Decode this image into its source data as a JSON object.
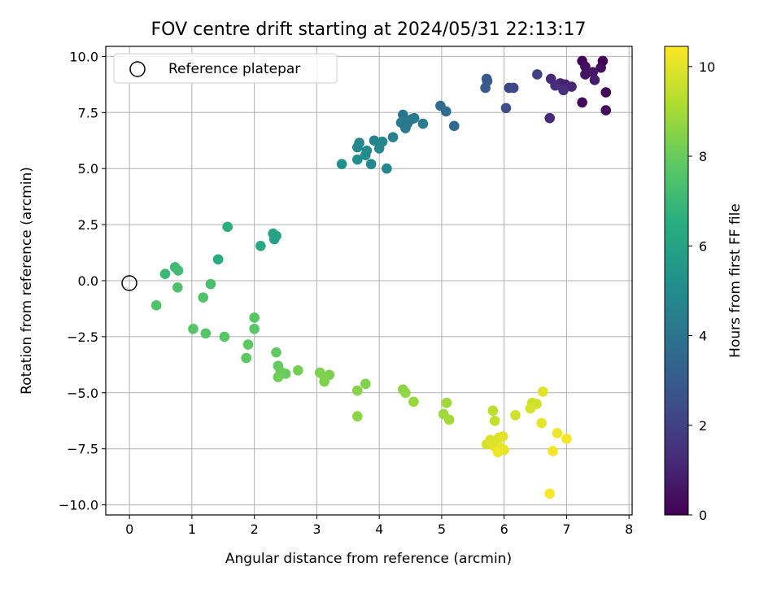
{
  "chart_data": {
    "type": "scatter",
    "title": "FOV centre drift starting at 2024/05/31 22:13:17",
    "xlabel": "Angular distance from reference (arcmin)",
    "ylabel": "Rotation from reference (arcmin)",
    "xlim": [
      -0.38,
      8.05
    ],
    "ylim": [
      -10.45,
      10.45
    ],
    "xticks": [
      "0",
      "1",
      "2",
      "3",
      "4",
      "5",
      "6",
      "7",
      "8"
    ],
    "xtick_values": [
      0,
      1,
      2,
      3,
      4,
      5,
      6,
      7,
      8
    ],
    "yticks": [
      "−10.0",
      "−7.5",
      "−5.0",
      "−2.5",
      "0.0",
      "2.5",
      "5.0",
      "7.5",
      "10.0"
    ],
    "ytick_values": [
      -10,
      -7.5,
      -5,
      -2.5,
      0,
      2.5,
      5,
      7.5,
      10
    ],
    "grid": true,
    "legend": {
      "placement": "upper-left",
      "entries": [
        {
          "label": "Reference platepar",
          "marker": "open-circle"
        }
      ]
    },
    "reference_point": {
      "x": 0,
      "y": 0
    },
    "colorbar": {
      "label": "Hours from first FF file",
      "colormap": "viridis",
      "range": [
        0,
        10.45
      ],
      "ticks": [
        "0",
        "2",
        "4",
        "6",
        "8",
        "10"
      ],
      "tick_values": [
        0,
        2,
        4,
        6,
        8,
        10
      ]
    },
    "points": [
      {
        "x": 7.25,
        "y": 9.8,
        "t": 0.2
      },
      {
        "x": 7.58,
        "y": 9.8,
        "t": 0.1
      },
      {
        "x": 7.3,
        "y": 9.55,
        "t": 0.4
      },
      {
        "x": 7.55,
        "y": 9.5,
        "t": 0.3
      },
      {
        "x": 7.42,
        "y": 9.3,
        "t": 0.6
      },
      {
        "x": 7.3,
        "y": 9.2,
        "t": 0.5
      },
      {
        "x": 7.45,
        "y": 8.95,
        "t": 0.8
      },
      {
        "x": 7.63,
        "y": 8.4,
        "t": 0.1
      },
      {
        "x": 7.25,
        "y": 7.95,
        "t": 0.2
      },
      {
        "x": 7.63,
        "y": 7.6,
        "t": 0.3
      },
      {
        "x": 6.75,
        "y": 9.0,
        "t": 1.2
      },
      {
        "x": 6.9,
        "y": 8.8,
        "t": 1.1
      },
      {
        "x": 6.98,
        "y": 8.75,
        "t": 1.0
      },
      {
        "x": 6.82,
        "y": 8.7,
        "t": 1.3
      },
      {
        "x": 7.08,
        "y": 8.65,
        "t": 1.1
      },
      {
        "x": 6.95,
        "y": 8.5,
        "t": 1.4
      },
      {
        "x": 6.73,
        "y": 7.25,
        "t": 1.2
      },
      {
        "x": 6.53,
        "y": 9.2,
        "t": 2.0
      },
      {
        "x": 6.08,
        "y": 8.6,
        "t": 2.2
      },
      {
        "x": 6.15,
        "y": 8.6,
        "t": 2.3
      },
      {
        "x": 6.03,
        "y": 7.7,
        "t": 2.5
      },
      {
        "x": 5.72,
        "y": 9.0,
        "t": 2.8
      },
      {
        "x": 5.73,
        "y": 8.9,
        "t": 2.9
      },
      {
        "x": 5.7,
        "y": 8.6,
        "t": 3.0
      },
      {
        "x": 4.98,
        "y": 7.8,
        "t": 3.6
      },
      {
        "x": 5.07,
        "y": 7.55,
        "t": 3.7
      },
      {
        "x": 5.2,
        "y": 6.9,
        "t": 3.5
      },
      {
        "x": 4.38,
        "y": 7.4,
        "t": 4.0
      },
      {
        "x": 4.52,
        "y": 7.2,
        "t": 4.1
      },
      {
        "x": 4.56,
        "y": 7.25,
        "t": 4.2
      },
      {
        "x": 4.35,
        "y": 7.05,
        "t": 4.3
      },
      {
        "x": 4.45,
        "y": 7.0,
        "t": 4.1
      },
      {
        "x": 4.7,
        "y": 7.0,
        "t": 4.4
      },
      {
        "x": 4.42,
        "y": 6.8,
        "t": 4.2
      },
      {
        "x": 4.22,
        "y": 6.4,
        "t": 4.5
      },
      {
        "x": 3.92,
        "y": 6.25,
        "t": 4.6
      },
      {
        "x": 4.05,
        "y": 6.2,
        "t": 4.7
      },
      {
        "x": 3.68,
        "y": 6.15,
        "t": 4.8
      },
      {
        "x": 3.65,
        "y": 5.95,
        "t": 4.9
      },
      {
        "x": 3.8,
        "y": 5.8,
        "t": 5.0
      },
      {
        "x": 4.0,
        "y": 5.9,
        "t": 4.8
      },
      {
        "x": 3.78,
        "y": 5.6,
        "t": 5.1
      },
      {
        "x": 3.65,
        "y": 5.4,
        "t": 5.0
      },
      {
        "x": 3.87,
        "y": 5.2,
        "t": 4.9
      },
      {
        "x": 4.12,
        "y": 5.0,
        "t": 4.7
      },
      {
        "x": 3.4,
        "y": 5.2,
        "t": 5.2
      },
      {
        "x": 2.3,
        "y": 2.1,
        "t": 6.0
      },
      {
        "x": 2.35,
        "y": 2.0,
        "t": 6.1
      },
      {
        "x": 2.32,
        "y": 1.85,
        "t": 6.0
      },
      {
        "x": 2.1,
        "y": 1.55,
        "t": 6.2
      },
      {
        "x": 1.57,
        "y": 2.4,
        "t": 6.6
      },
      {
        "x": 1.42,
        "y": 0.95,
        "t": 6.4
      },
      {
        "x": 0.73,
        "y": 0.6,
        "t": 7.1
      },
      {
        "x": 0.78,
        "y": 0.45,
        "t": 7.2
      },
      {
        "x": 0.57,
        "y": 0.3,
        "t": 7.0
      },
      {
        "x": 1.3,
        "y": -0.15,
        "t": 7.3
      },
      {
        "x": 0.77,
        "y": -0.3,
        "t": 7.4
      },
      {
        "x": 1.18,
        "y": -0.75,
        "t": 7.5
      },
      {
        "x": 0.43,
        "y": -1.1,
        "t": 7.5
      },
      {
        "x": 2.0,
        "y": -1.65,
        "t": 7.7
      },
      {
        "x": 1.02,
        "y": -2.15,
        "t": 7.6
      },
      {
        "x": 2.0,
        "y": -2.15,
        "t": 7.7
      },
      {
        "x": 1.22,
        "y": -2.35,
        "t": 7.6
      },
      {
        "x": 1.52,
        "y": -2.5,
        "t": 7.7
      },
      {
        "x": 1.9,
        "y": -2.85,
        "t": 7.8
      },
      {
        "x": 2.35,
        "y": -3.2,
        "t": 7.9
      },
      {
        "x": 1.87,
        "y": -3.45,
        "t": 7.8
      },
      {
        "x": 2.38,
        "y": -3.8,
        "t": 7.9
      },
      {
        "x": 2.42,
        "y": -4.05,
        "t": 8.0
      },
      {
        "x": 2.5,
        "y": -4.15,
        "t": 8.0
      },
      {
        "x": 2.38,
        "y": -4.3,
        "t": 8.1
      },
      {
        "x": 2.7,
        "y": -4.0,
        "t": 8.2
      },
      {
        "x": 3.05,
        "y": -4.1,
        "t": 8.3
      },
      {
        "x": 3.2,
        "y": -4.2,
        "t": 8.3
      },
      {
        "x": 3.12,
        "y": -4.3,
        "t": 8.4
      },
      {
        "x": 3.12,
        "y": -4.5,
        "t": 8.4
      },
      {
        "x": 3.78,
        "y": -4.6,
        "t": 8.4
      },
      {
        "x": 3.65,
        "y": -4.9,
        "t": 8.5
      },
      {
        "x": 3.65,
        "y": -6.05,
        "t": 8.6
      },
      {
        "x": 4.38,
        "y": -4.85,
        "t": 8.6
      },
      {
        "x": 4.42,
        "y": -5.0,
        "t": 8.7
      },
      {
        "x": 4.55,
        "y": -5.4,
        "t": 8.8
      },
      {
        "x": 5.08,
        "y": -5.45,
        "t": 8.9
      },
      {
        "x": 5.03,
        "y": -5.95,
        "t": 8.9
      },
      {
        "x": 5.12,
        "y": -6.2,
        "t": 9.0
      },
      {
        "x": 5.82,
        "y": -5.8,
        "t": 9.4
      },
      {
        "x": 5.85,
        "y": -6.25,
        "t": 9.5
      },
      {
        "x": 6.18,
        "y": -6.0,
        "t": 9.7
      },
      {
        "x": 5.72,
        "y": -7.3,
        "t": 9.8
      },
      {
        "x": 5.78,
        "y": -7.1,
        "t": 9.9
      },
      {
        "x": 5.92,
        "y": -7.0,
        "t": 9.9
      },
      {
        "x": 5.98,
        "y": -6.95,
        "t": 10.0
      },
      {
        "x": 5.85,
        "y": -7.4,
        "t": 10.0
      },
      {
        "x": 5.95,
        "y": -7.45,
        "t": 10.1
      },
      {
        "x": 6.0,
        "y": -7.55,
        "t": 10.1
      },
      {
        "x": 5.9,
        "y": -7.65,
        "t": 10.2
      },
      {
        "x": 6.45,
        "y": -5.45,
        "t": 9.6
      },
      {
        "x": 6.52,
        "y": -5.5,
        "t": 9.7
      },
      {
        "x": 6.42,
        "y": -5.7,
        "t": 9.8
      },
      {
        "x": 6.62,
        "y": -4.95,
        "t": 10.0
      },
      {
        "x": 6.6,
        "y": -6.35,
        "t": 10.1
      },
      {
        "x": 6.85,
        "y": -6.8,
        "t": 10.2
      },
      {
        "x": 7.0,
        "y": -7.05,
        "t": 10.3
      },
      {
        "x": 6.78,
        "y": -7.6,
        "t": 10.3
      },
      {
        "x": 6.73,
        "y": -9.5,
        "t": 10.4
      }
    ]
  }
}
